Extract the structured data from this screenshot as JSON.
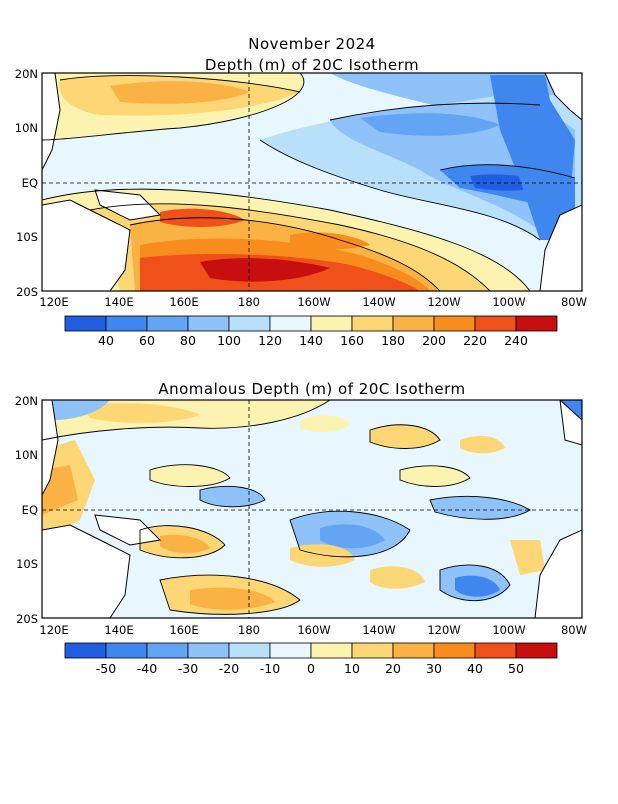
{
  "header": {
    "line1": "November 2024",
    "line2": "Depth (m) of 20C Isotherm"
  },
  "panel_bottom": {
    "title": "Anomalous Depth (m) of 20C Isotherm"
  },
  "axes": {
    "lat_labels": [
      "20N",
      "10N",
      "EQ",
      "10S",
      "20S"
    ],
    "lon_labels": [
      "120E",
      "140E",
      "160E",
      "180",
      "160W",
      "140W",
      "120W",
      "100W",
      "80W"
    ]
  },
  "colorbar_top": {
    "labels": [
      "40",
      "60",
      "80",
      "100",
      "120",
      "140",
      "160",
      "180",
      "200",
      "220",
      "240"
    ],
    "colors": [
      "#1f5ee0",
      "#3f86ee",
      "#64a4f4",
      "#8ec2f8",
      "#b8e0fa",
      "#e8f7fd",
      "#fdf3b0",
      "#fdd676",
      "#fab244",
      "#f88c1c",
      "#f0501a",
      "#c80f0f"
    ]
  },
  "colorbar_bottom": {
    "labels": [
      "-50",
      "-40",
      "-30",
      "-20",
      "-10",
      "0",
      "10",
      "20",
      "30",
      "40",
      "50"
    ],
    "colors": [
      "#1f5ee0",
      "#3f86ee",
      "#64a4f4",
      "#8ec2f8",
      "#b8e0fa",
      "#e8f7fd",
      "#fdf3b0",
      "#fdd676",
      "#fab244",
      "#f88c1c",
      "#f0501a",
      "#c80f0f"
    ]
  }
}
